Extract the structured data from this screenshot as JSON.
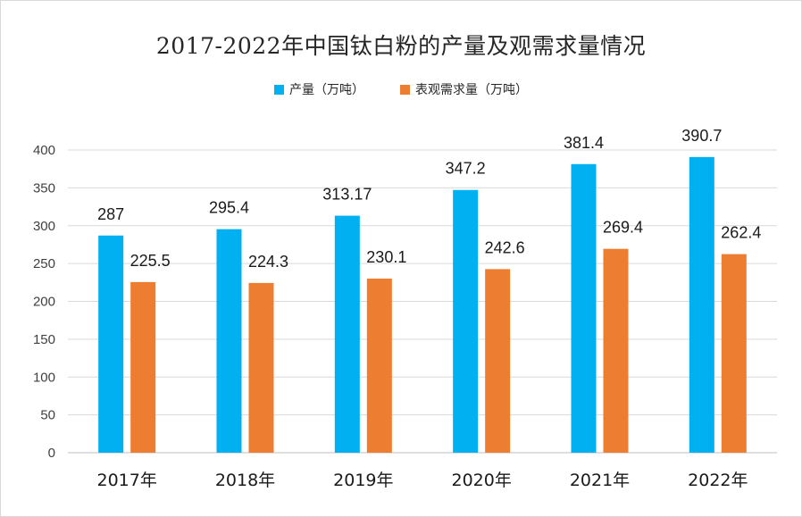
{
  "chart_data": {
    "type": "bar",
    "title": "2017-2022年中国钛白粉的产量及观需求量情况",
    "categories": [
      "2017年",
      "2018年",
      "2019年",
      "2020年",
      "2021年",
      "2022年"
    ],
    "series": [
      {
        "name": "产量（万吨）",
        "color": "#00b0f0",
        "values": [
          287,
          295.4,
          313.17,
          347.2,
          381.4,
          390.7
        ],
        "labels": [
          "287",
          "295.4",
          "313.17",
          "347.2",
          "381.4",
          "390.7"
        ]
      },
      {
        "name": "表观需求量（万吨）",
        "color": "#ed7d31",
        "values": [
          225.5,
          224.3,
          230.1,
          242.6,
          269.4,
          262.4
        ],
        "labels": [
          "225.5",
          "224.3",
          "230.1",
          "242.6",
          "269.4",
          "262.4"
        ]
      }
    ],
    "yticks": [
      0,
      50,
      100,
      150,
      200,
      250,
      300,
      350,
      400
    ],
    "ylim": [
      0,
      400
    ],
    "grid": true,
    "legend_position": "top-center",
    "xlabel": "",
    "ylabel": ""
  }
}
